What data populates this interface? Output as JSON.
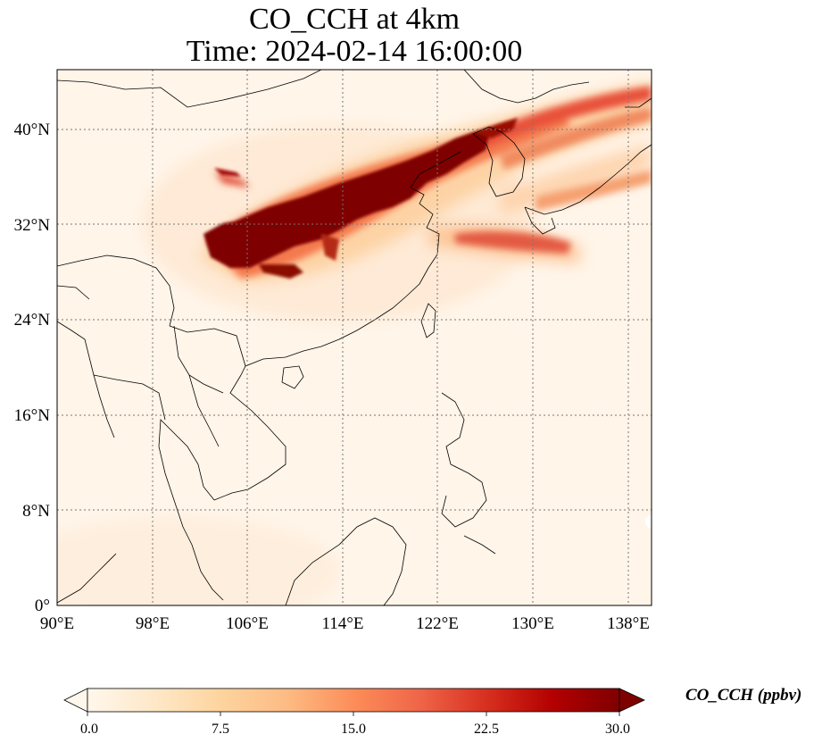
{
  "title": {
    "line1": "CO_CCH at 4km",
    "line2": "Time: 2024-02-14 16:00:00"
  },
  "map": {
    "projection": "PlateCarree",
    "lon_range": [
      90,
      140
    ],
    "lat_range": [
      0,
      45
    ],
    "gridlines": "dotted",
    "lon_ticks": [
      {
        "value": 90,
        "label": "90°E"
      },
      {
        "value": 98,
        "label": "98°E"
      },
      {
        "value": 106,
        "label": "106°E"
      },
      {
        "value": 114,
        "label": "114°E"
      },
      {
        "value": 122,
        "label": "122°E"
      },
      {
        "value": 130,
        "label": "130°E"
      },
      {
        "value": 138,
        "label": "138°E"
      }
    ],
    "lat_ticks": [
      {
        "value": 0,
        "label": "0°"
      },
      {
        "value": 8,
        "label": "8°N"
      },
      {
        "value": 16,
        "label": "16°N"
      },
      {
        "value": 24,
        "label": "24°N"
      },
      {
        "value": 32,
        "label": "32°N"
      },
      {
        "value": 40,
        "label": "40°N"
      }
    ],
    "plume_center_line": [
      {
        "lon": 103,
        "lat": 30.5
      },
      {
        "lon": 108,
        "lat": 32
      },
      {
        "lon": 114,
        "lat": 34.5
      },
      {
        "lon": 120,
        "lat": 36.8
      },
      {
        "lon": 126,
        "lat": 38.5
      }
    ],
    "plume_outer_branch": [
      {
        "lon": 124,
        "lat": 38.5
      },
      {
        "lon": 130,
        "lat": 40.5
      },
      {
        "lon": 136,
        "lat": 42
      },
      {
        "lon": 140,
        "lat": 43
      }
    ]
  },
  "colorbar": {
    "label": "CO_CCH (ppbv)",
    "colormap": "OrRd",
    "min": 0.0,
    "max": 30.0,
    "extend": "both",
    "ticks": [
      "0.0",
      "7.5",
      "15.0",
      "22.5",
      "30.0"
    ],
    "colors": [
      "#fff7ec",
      "#fee8c8",
      "#fdd49e",
      "#fdbb84",
      "#fc8d59",
      "#ef6548",
      "#d7301f",
      "#b30000",
      "#7f0000"
    ]
  }
}
